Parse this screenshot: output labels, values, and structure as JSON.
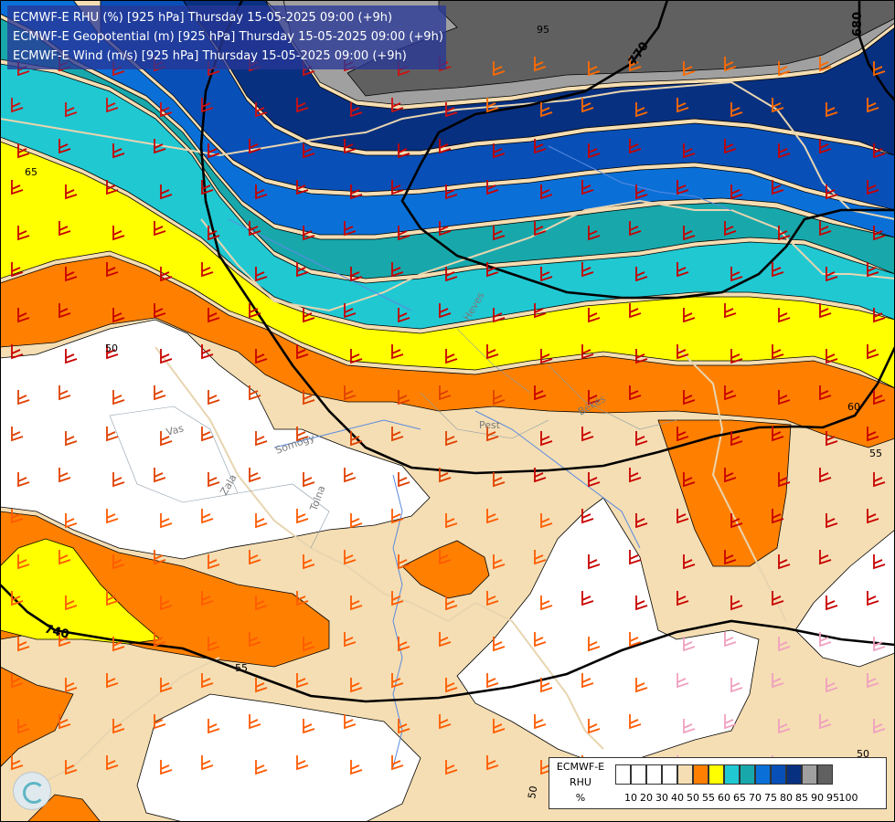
{
  "titles": [
    "ECMWF-E RHU (%) [925 hPa] Thursday 15-05-2025 09:00 (+9h)",
    "ECMWF-E Geopotential (m) [925 hPa] Thursday 15-05-2025 09:00 (+9h)",
    "ECMWF-E Wind (m/s) [925 hPa] Thursday 15-05-2025 09:00 (+9h)"
  ],
  "legend": {
    "model": "ECMWF-E",
    "variable": "RHU",
    "unit": "%",
    "ticks": [
      "10",
      "20",
      "30",
      "40",
      "50",
      "55",
      "60",
      "65",
      "70",
      "75",
      "80",
      "85",
      "90",
      "95",
      "100"
    ],
    "colors": [
      "#ffffff",
      "#ffffff",
      "#ffffff",
      "#ffffff",
      "#f5deb3",
      "#ff8000",
      "#ffff00",
      "#20c8d2",
      "#18a8ab",
      "#0a70d8",
      "#0850b8",
      "#083080",
      "#a0a0a0",
      "#606060"
    ]
  },
  "fill_colors": {
    "below_50": "#ffffff",
    "50_55": "#f5deb3",
    "55_60": "#ff8000",
    "60_65": "#ffff00",
    "65_70": "#20c8d2",
    "70_75": "#18a8ab",
    "75_80": "#0a70d8",
    "80_85": "#0850b8",
    "85_90": "#083080",
    "90_95": "#a0a0a0",
    "95_100": "#606060"
  },
  "contour_labels": {
    "rhu": [
      "95",
      "65",
      "50",
      "60",
      "55",
      "55",
      "50",
      "50"
    ],
    "geopotential": [
      "770",
      "680",
      "740"
    ]
  },
  "place_labels": [
    "Pest",
    "Vas",
    "Somogy",
    "Tolna",
    "Zala",
    "Heves",
    "Békés"
  ]
}
